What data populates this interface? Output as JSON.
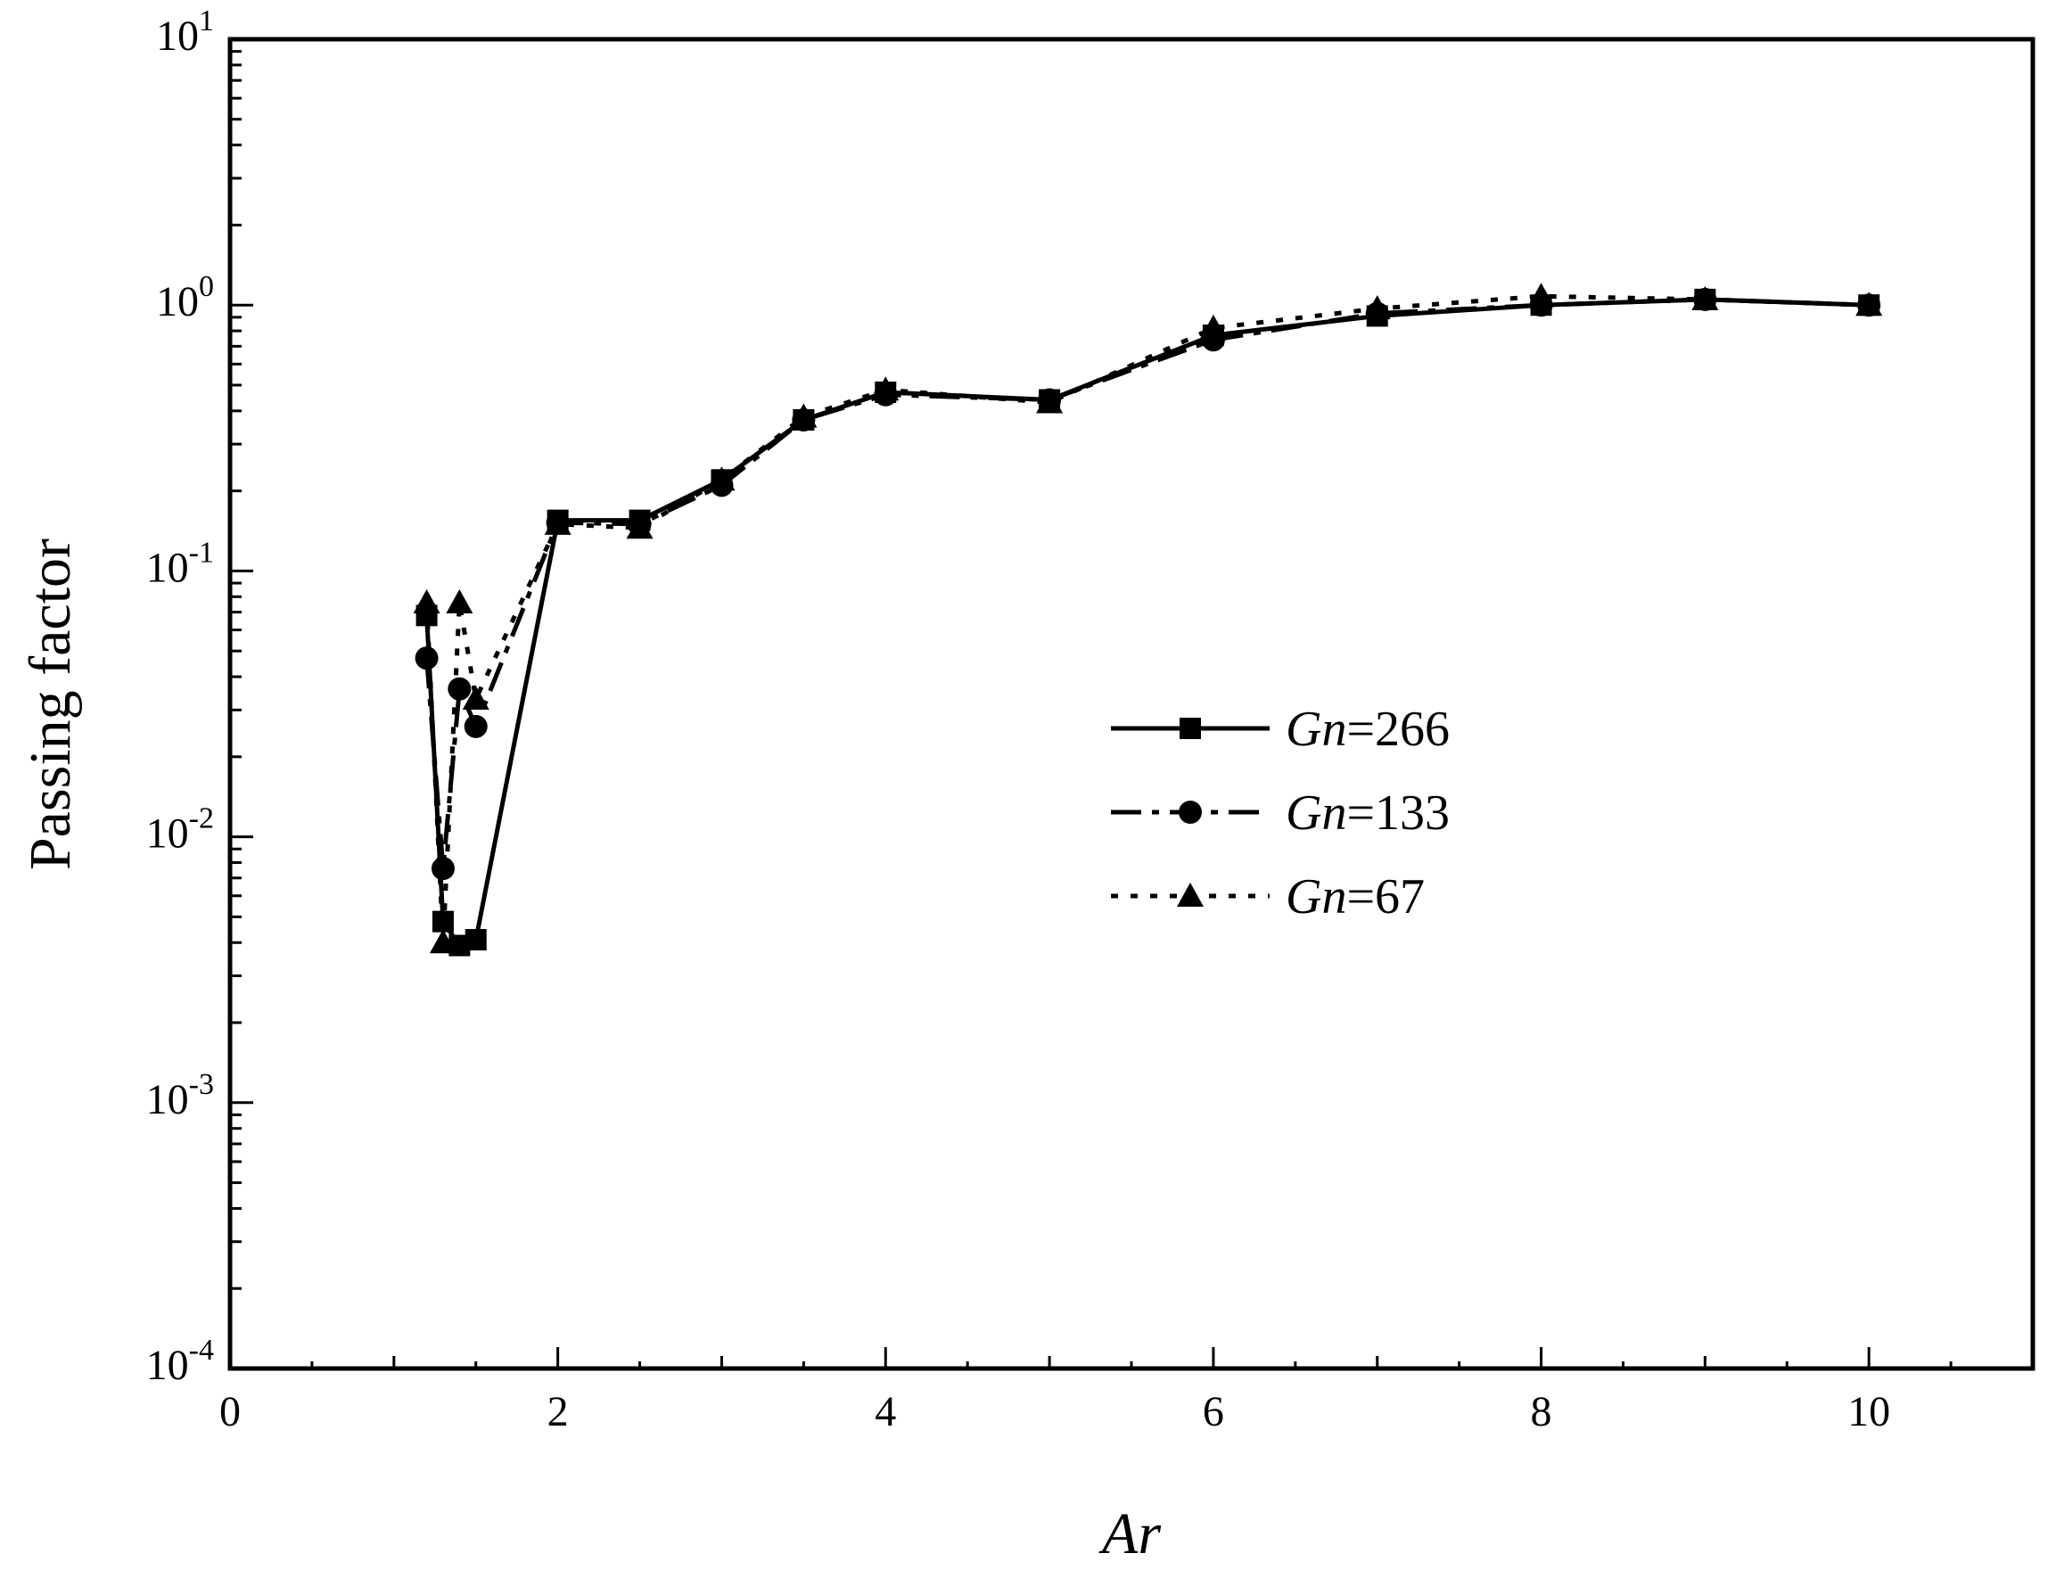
{
  "chart_data": {
    "type": "line",
    "xlabel": "Ar",
    "ylabel": "Passing factor",
    "xlim": [
      0,
      11
    ],
    "ylim": [
      0.0001,
      10
    ],
    "yscale": "log",
    "x_ticks": [
      "0",
      "2",
      "4",
      "6",
      "8",
      "10"
    ],
    "y_ticks": [
      {
        "base": "10",
        "exp": "1",
        "value": 10
      },
      {
        "base": "10",
        "exp": "0",
        "value": 1
      },
      {
        "base": "10",
        "exp": "-1",
        "value": 0.1
      },
      {
        "base": "10",
        "exp": "-2",
        "value": 0.01
      },
      {
        "base": "10",
        "exp": "-3",
        "value": 0.001
      },
      {
        "base": "10",
        "exp": "-4",
        "value": 0.0001
      }
    ],
    "grid": false,
    "legend_position": "center-right",
    "series": [
      {
        "name": "Gn=266",
        "name_var": "Gn",
        "name_value": "=266",
        "marker": "square",
        "dash": "solid",
        "x": [
          1.2,
          1.3,
          1.4,
          1.5,
          2.0,
          2.5,
          3.0,
          3.5,
          4.0,
          5.0,
          6.0,
          7.0,
          8.0,
          9.0,
          10.0
        ],
        "y": [
          0.068,
          0.0048,
          0.0039,
          0.0041,
          0.155,
          0.155,
          0.22,
          0.37,
          0.47,
          0.44,
          0.77,
          0.91,
          1.0,
          1.05,
          1.0
        ]
      },
      {
        "name": "Gn=133",
        "name_var": "Gn",
        "name_value": "=133",
        "marker": "circle",
        "dash": "dashdot",
        "x": [
          1.2,
          1.3,
          1.4,
          1.5,
          2.0,
          2.5,
          3.0,
          3.5,
          4.0,
          5.0,
          6.0,
          7.0,
          8.0,
          9.0,
          10.0
        ],
        "y": [
          0.047,
          0.0076,
          0.036,
          0.026,
          0.152,
          0.15,
          0.21,
          0.37,
          0.46,
          0.44,
          0.74,
          0.93,
          1.0,
          1.05,
          1.0
        ]
      },
      {
        "name": "Gn=67",
        "name_var": "Gn",
        "name_value": "=67",
        "marker": "triangle",
        "dash": "dotted",
        "x": [
          1.2,
          1.3,
          1.4,
          1.5,
          2.0,
          2.5,
          3.0,
          3.5,
          4.0,
          5.0,
          6.0,
          7.0,
          8.0,
          9.0,
          10.0
        ],
        "y": [
          0.076,
          0.004,
          0.076,
          0.033,
          0.15,
          0.145,
          0.22,
          0.38,
          0.48,
          0.43,
          0.82,
          0.97,
          1.08,
          1.05,
          1.0
        ]
      }
    ]
  }
}
